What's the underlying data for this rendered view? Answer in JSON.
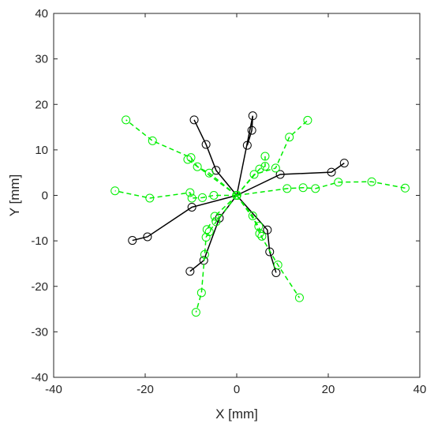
{
  "chart_data": {
    "type": "line",
    "xlabel": "X [mm]",
    "ylabel": "Y [mm]",
    "xlim": [
      -40,
      40
    ],
    "ylim": [
      -40,
      40
    ],
    "x_ticks": [
      -40,
      -20,
      0,
      20,
      40
    ],
    "y_ticks": [
      -40,
      -30,
      -20,
      -10,
      0,
      10,
      20,
      30,
      40
    ],
    "grid": false,
    "series": [
      {
        "style": "solid",
        "color": "#000000",
        "marker": "circle",
        "traces": [
          [
            [
              0,
              0
            ],
            [
              3.5,
              17.5
            ],
            [
              3.3,
              14.3
            ],
            [
              2.3,
              11.0
            ]
          ],
          [
            [
              0,
              0
            ],
            [
              -4.5,
              5.5
            ],
            [
              -6.7,
              11.2
            ],
            [
              -9.3,
              16.6
            ]
          ],
          [
            [
              0,
              0
            ],
            [
              9.5,
              4.6
            ],
            [
              20.7,
              5.1
            ],
            [
              23.5,
              7.1
            ]
          ],
          [
            [
              0,
              0
            ],
            [
              -9.8,
              -2.6
            ],
            [
              -19.5,
              -9.1
            ],
            [
              -22.8,
              -9.9
            ]
          ],
          [
            [
              0,
              0
            ],
            [
              -3.8,
              -5.0
            ],
            [
              -7.2,
              -14.3
            ],
            [
              -10.2,
              -16.7
            ]
          ],
          [
            [
              0,
              0
            ],
            [
              6.7,
              -7.6
            ],
            [
              7.2,
              -12.4
            ],
            [
              8.6,
              -17.0
            ]
          ]
        ]
      },
      {
        "style": "dashed",
        "color": "#00ee00",
        "marker": "circle",
        "traces": [
          [
            [
              0,
              0
            ],
            [
              3.8,
              4.6
            ],
            [
              8.5,
              6.0
            ],
            [
              11.5,
              12.8
            ],
            [
              15.5,
              16.5
            ]
          ],
          [
            [
              0,
              0
            ],
            [
              5.0,
              5.8
            ],
            [
              6.2,
              6.4
            ],
            [
              6.2,
              8.6
            ]
          ],
          [
            [
              0,
              0
            ],
            [
              -6.0,
              4.9
            ],
            [
              -8.6,
              6.3
            ],
            [
              -10.0,
              8.3
            ],
            [
              -18.4,
              12.0
            ],
            [
              -24.2,
              16.6
            ]
          ],
          [
            [
              0,
              0
            ],
            [
              -10.7,
              7.9
            ]
          ],
          [
            [
              0,
              0
            ],
            [
              11.0,
              1.5
            ],
            [
              14.5,
              1.7
            ],
            [
              17.2,
              1.5
            ],
            [
              22.2,
              2.9
            ],
            [
              29.5,
              3.0
            ],
            [
              36.8,
              1.6
            ]
          ],
          [
            [
              0,
              0
            ],
            [
              -5.0,
              0.0
            ],
            [
              -7.5,
              -0.5
            ],
            [
              -9.8,
              -0.6
            ],
            [
              -10.2,
              0.6
            ],
            [
              -19.0,
              -0.6
            ],
            [
              -26.6,
              1.0
            ]
          ],
          [
            [
              0,
              0
            ],
            [
              -4.5,
              -5.8
            ],
            [
              -6.0,
              -8.0
            ],
            [
              -6.7,
              -9.2
            ],
            [
              -7.0,
              -13.0
            ],
            [
              -7.7,
              -21.4
            ],
            [
              -8.9,
              -25.7
            ]
          ],
          [
            [
              0,
              0
            ],
            [
              -4.8,
              -4.6
            ],
            [
              -6.5,
              -7.5
            ]
          ],
          [
            [
              0,
              0
            ],
            [
              3.5,
              -4.5
            ],
            [
              5.0,
              -8.4
            ],
            [
              9.0,
              -15.3
            ],
            [
              13.7,
              -22.5
            ]
          ],
          [
            [
              0,
              0
            ],
            [
              4.8,
              -6.8
            ],
            [
              5.5,
              -9.0
            ]
          ]
        ]
      }
    ]
  }
}
